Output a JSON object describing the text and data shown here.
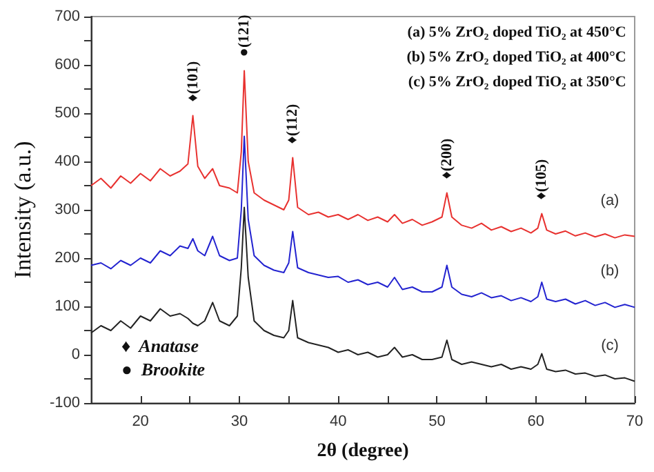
{
  "chart_data": {
    "type": "line",
    "xlabel": "2θ (degree)",
    "ylabel": "Intensity (a.u.)",
    "xlim": [
      15,
      70
    ],
    "xticks": [
      {
        "value": 15,
        "label": null
      },
      20,
      {
        "value": 25,
        "label": null
      },
      30,
      {
        "value": 35,
        "label": null
      },
      40,
      {
        "value": 45,
        "label": null
      },
      50,
      {
        "value": 55,
        "label": null
      },
      60,
      {
        "value": 65,
        "label": null
      },
      70
    ],
    "ylim": [
      -100,
      700
    ],
    "yticks": [
      -100,
      {
        "value": -50,
        "label": null
      },
      0,
      {
        "value": 50,
        "label": null
      },
      100,
      {
        "value": 150,
        "label": null
      },
      200,
      {
        "value": 250,
        "label": null
      },
      300,
      {
        "value": 350,
        "label": null
      },
      400,
      {
        "value": 450,
        "label": null
      },
      500,
      {
        "value": 550,
        "label": null
      },
      600,
      {
        "value": 650,
        "label": null
      },
      700
    ],
    "grid": false,
    "legend": false,
    "marker": "none",
    "line_style": "solid",
    "x": [
      15,
      16,
      17,
      18,
      19,
      20,
      21,
      22,
      23,
      24,
      24.8,
      25.3,
      25.8,
      26.5,
      27.3,
      28,
      29,
      29.8,
      30.2,
      30.5,
      30.9,
      31.5,
      32.5,
      33.5,
      34.5,
      35,
      35.4,
      35.9,
      37,
      38,
      39,
      40,
      41,
      42,
      43,
      44,
      45,
      45.7,
      46.5,
      47.5,
      48.5,
      49.5,
      50.5,
      51,
      51.5,
      52.5,
      53.5,
      54.5,
      55.5,
      56.5,
      57.5,
      58.5,
      59.5,
      60.2,
      60.6,
      61.1,
      62,
      63,
      64,
      65,
      66,
      67,
      68,
      69,
      70
    ],
    "series": [
      {
        "name": "(a)",
        "color": "#e8312f",
        "values": [
          350,
          365,
          345,
          370,
          355,
          375,
          360,
          385,
          370,
          380,
          395,
          495,
          390,
          365,
          385,
          350,
          345,
          335,
          420,
          588,
          400,
          335,
          320,
          310,
          300,
          320,
          408,
          305,
          290,
          295,
          285,
          290,
          280,
          290,
          278,
          285,
          275,
          290,
          272,
          280,
          268,
          275,
          285,
          335,
          285,
          268,
          262,
          272,
          258,
          265,
          255,
          262,
          252,
          262,
          292,
          258,
          250,
          256,
          246,
          252,
          244,
          250,
          242,
          248,
          245
        ]
      },
      {
        "name": "(b)",
        "color": "#2323d0",
        "values": [
          185,
          190,
          178,
          195,
          185,
          200,
          190,
          215,
          205,
          225,
          220,
          240,
          215,
          205,
          245,
          205,
          195,
          200,
          300,
          452,
          280,
          205,
          185,
          175,
          170,
          190,
          255,
          180,
          170,
          165,
          160,
          162,
          150,
          155,
          145,
          150,
          140,
          160,
          135,
          140,
          130,
          130,
          140,
          185,
          140,
          125,
          120,
          128,
          118,
          122,
          112,
          118,
          110,
          120,
          150,
          115,
          110,
          115,
          105,
          112,
          102,
          108,
          98,
          104,
          98
        ]
      },
      {
        "name": "(c)",
        "color": "#222222",
        "values": [
          45,
          60,
          50,
          70,
          55,
          80,
          70,
          95,
          80,
          85,
          75,
          65,
          60,
          70,
          108,
          70,
          60,
          80,
          180,
          305,
          160,
          70,
          50,
          40,
          35,
          50,
          112,
          35,
          25,
          20,
          15,
          5,
          10,
          0,
          5,
          -5,
          0,
          15,
          -5,
          0,
          -10,
          -10,
          -5,
          30,
          -10,
          -20,
          -15,
          -20,
          -25,
          -20,
          -30,
          -25,
          -30,
          -20,
          2,
          -30,
          -35,
          -32,
          -40,
          -38,
          -45,
          -42,
          -50,
          -48,
          -55
        ]
      }
    ],
    "annotations": [
      {
        "text": "♦(101)",
        "x": 25.3,
        "y": 495
      },
      {
        "text": "●(121)",
        "x": 30.5,
        "y": 588
      },
      {
        "text": "♦(112)",
        "x": 35.4,
        "y": 408
      },
      {
        "text": "♦(200)",
        "x": 51,
        "y": 335
      },
      {
        "text": "♦(105)",
        "x": 60.6,
        "y": 292
      },
      "(a) 5% ZrO₂ doped TiO₂ at 450°C",
      "(b) 5% ZrO₂ doped TiO₂ at 400°C",
      "(c) 5% ZrO₂ doped TiO₂ at 350°C",
      "♦  Anatase",
      "●  Brookite"
    ]
  }
}
